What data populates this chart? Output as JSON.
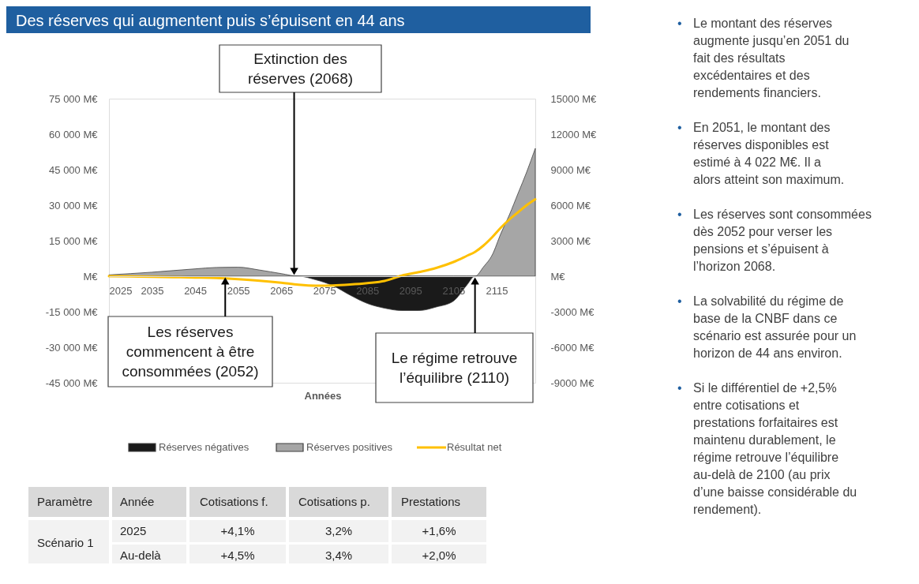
{
  "chart_data": {
    "type": "area",
    "title": "Des réserves qui augmentent puis s’épuisent en 44 ans",
    "xlabel": "Années",
    "x": [
      2025,
      2030,
      2035,
      2040,
      2045,
      2050,
      2055,
      2060,
      2065,
      2069,
      2073,
      2077,
      2081,
      2085,
      2089,
      2093,
      2097,
      2101,
      2105,
      2108,
      2110,
      2112,
      2114,
      2116,
      2118,
      2120,
      2122,
      2124
    ],
    "xlim": [
      2025,
      2124
    ],
    "xticks": [
      2025,
      2035,
      2045,
      2055,
      2065,
      2075,
      2085,
      2095,
      2105,
      2115
    ],
    "ylim": [
      -45000,
      75000
    ],
    "yticks": [
      {
        "value": 75000,
        "label": "75 000  M€"
      },
      {
        "value": 60000,
        "label": "60 000  M€"
      },
      {
        "value": 45000,
        "label": "45 000  M€"
      },
      {
        "value": 30000,
        "label": "30 000  M€"
      },
      {
        "value": 15000,
        "label": "15 000  M€"
      },
      {
        "value": 0,
        "label": "M€"
      },
      {
        "value": -15000,
        "label": "-15 000  M€"
      },
      {
        "value": -30000,
        "label": "-30 000  M€"
      },
      {
        "value": -45000,
        "label": "-45 000  M€"
      }
    ],
    "y2lim": [
      -9000,
      15000
    ],
    "y2ticks": [
      {
        "value": 15000,
        "label": "15000  M€"
      },
      {
        "value": 12000,
        "label": "12000  M€"
      },
      {
        "value": 9000,
        "label": "9000  M€"
      },
      {
        "value": 6000,
        "label": "6000  M€"
      },
      {
        "value": 3000,
        "label": "3000  M€"
      },
      {
        "value": 0,
        "label": "M€"
      },
      {
        "value": -3000,
        "label": "-3000  M€"
      },
      {
        "value": -6000,
        "label": "-6000  M€"
      },
      {
        "value": -9000,
        "label": "-9000  M€"
      }
    ],
    "series": [
      {
        "name": "Réserves négatives",
        "color": "#1a1a1a",
        "values": [
          0,
          0,
          0,
          0,
          0,
          0,
          0,
          0,
          0,
          0,
          -1500,
          -4000,
          -8000,
          -11500,
          -13500,
          -14500,
          -14500,
          -13000,
          -10500,
          -4000,
          0,
          0,
          0,
          0,
          0,
          0,
          0,
          0
        ]
      },
      {
        "name": "Réserves positives",
        "color": "#a6a6a6",
        "values": [
          560,
          1100,
          1700,
          2400,
          3100,
          3700,
          3800,
          2600,
          1100,
          0,
          0,
          0,
          0,
          0,
          0,
          0,
          0,
          0,
          0,
          0,
          0,
          4000,
          9000,
          18000,
          26000,
          35000,
          44000,
          54000
        ]
      },
      {
        "name": "Résultat net",
        "type": "line",
        "axis": "y2",
        "color": "#ffc000",
        "values": [
          0,
          -20,
          -50,
          -80,
          -110,
          -150,
          -250,
          -380,
          -550,
          -720,
          -800,
          -780,
          -700,
          -580,
          -400,
          50,
          350,
          700,
          1200,
          1700,
          2050,
          2600,
          3300,
          4100,
          4800,
          5400,
          6000,
          6500
        ]
      }
    ],
    "legend": "bottom",
    "annotations": [
      {
        "text": "Extinction des réserves (2068)",
        "x": 2068,
        "y": 0
      },
      {
        "text": "Les réserves commencent à être consommées (2052)",
        "x": 2052,
        "y": 0
      },
      {
        "text": "Le régime retrouve l’équilibre (2110)",
        "x": 2110,
        "y": 0
      },
      "• Le montant des réserves augmente jusqu’en 2051 du fait des résultats excédentaires et des rendements financiers.",
      "• En 2051, le montant des réserves disponibles est estimé à 4 022 M€. Il a alors atteint son maximum.",
      "• Les réserves sont consommées dès 2052 pour verser les pensions et s’épuisent à l’horizon 2068.",
      "• La solvabilité du régime de base de la CNBF dans ce scénario est assurée pour un horizon de 44 ans environ.",
      "• Si le différentiel de +2,5% entre cotisations et prestations forfaitaires est maintenu durablement, le régime retrouve l’équilibre au-delà de 2100 (au prix d’une baisse considérable du rendement).",
      "Paramètre",
      "Année",
      "Cotisations f.",
      "Cotisations p.",
      "Prestations",
      "Scénario 1",
      "2025",
      "+4,1%",
      "3,2%",
      "+1,6%",
      "Au-delà",
      "+4,5%",
      "3,4%",
      "+2,0%"
    ]
  }
}
